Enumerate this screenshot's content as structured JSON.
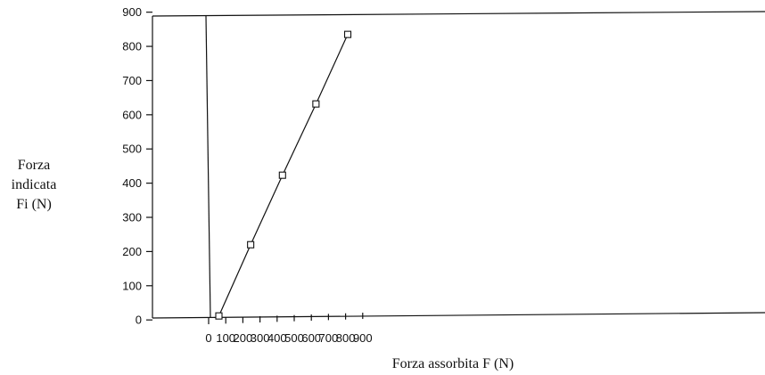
{
  "chart_data": {
    "type": "line",
    "xlabel": "Forza assorbita F (N)",
    "ylabel": [
      "Forza",
      "indicata",
      "Fi (N)"
    ],
    "x_ticks": [
      0,
      100,
      200,
      300,
      400,
      500,
      600,
      700,
      800,
      900
    ],
    "y_ticks": [
      0,
      100,
      200,
      300,
      400,
      500,
      600,
      700,
      800,
      900
    ],
    "xlim": [
      -100,
      1000
    ],
    "ylim": [
      0,
      900
    ],
    "grid": false,
    "marker": "square",
    "series": [
      {
        "x": [
          60,
          250,
          440,
          640,
          830
        ],
        "y": [
          5,
          210,
          410,
          615,
          815
        ]
      }
    ]
  }
}
